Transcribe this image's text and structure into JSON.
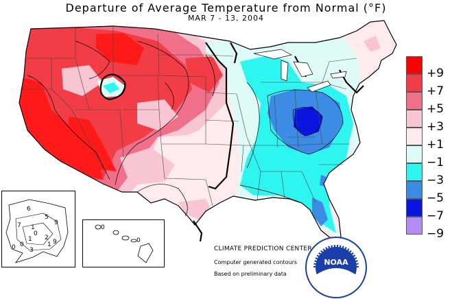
{
  "title": "Departure of Average Temperature from Normal (°F)",
  "subtitle": "MAR 7 - 13, 2004",
  "legend": [
    {
      "label": "+9",
      "color": "#ff0000"
    },
    {
      "label": "+7",
      "color": "#f23c46"
    },
    {
      "label": "+5",
      "color": "#f0708a"
    },
    {
      "label": "+3",
      "color": "#f8c6d2"
    },
    {
      "label": "+1",
      "color": "#fdebee"
    },
    {
      "label": "−1",
      "color": "#dffbf8"
    },
    {
      "label": "−3",
      "color": "#2ef5f0"
    },
    {
      "label": "−5",
      "color": "#3c8ce6"
    },
    {
      "label": "−7",
      "color": "#0a16e0"
    },
    {
      "label": "−9",
      "color": "#b38cf5"
    }
  ],
  "credits": {
    "center": "CLIMATE PREDICTION CENTER, NOAA",
    "line1": "Computer generated contours",
    "line2": "Based on preliminary data"
  },
  "logo_text": "NOAA",
  "alaska_labels": [
    "6",
    "7",
    "1",
    "0",
    "5",
    "9",
    "1",
    "0",
    "2",
    "0",
    "1",
    "3",
    "9"
  ],
  "hawaii_labels": [
    "0",
    "0"
  ]
}
